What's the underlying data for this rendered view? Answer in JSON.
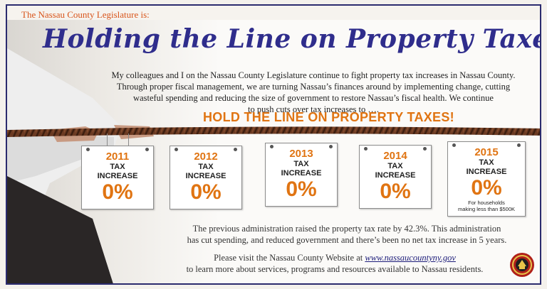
{
  "header": {
    "org_line": "The Nassau County Legislature is:",
    "headline": "Holding the Line on Property Taxes!"
  },
  "intro": {
    "line1": "My colleagues and I on the Nassau County Legislature continue to fight property tax increases in Nassau County.",
    "line2": "Through proper fiscal management, we are turning Nassau’s finances around by implementing change, cutting",
    "line3": "wasteful spending and reducing the size of government to restore Nassau’s fiscal health.  We continue",
    "line4": "to push cuts over tax increases to …."
  },
  "cta": "HOLD THE LINE ON PROPERTY TAXES!",
  "signs": [
    {
      "year": "2011",
      "line1": "TAX",
      "line2": "INCREASE",
      "percent": "0%",
      "note1": "",
      "note2": ""
    },
    {
      "year": "2012",
      "line1": "TAX",
      "line2": "INCREASE",
      "percent": "0%",
      "note1": "",
      "note2": ""
    },
    {
      "year": "2013",
      "line1": "TAX",
      "line2": "INCREASE",
      "percent": "0%",
      "note1": "",
      "note2": ""
    },
    {
      "year": "2014",
      "line1": "TAX",
      "line2": "INCREASE",
      "percent": "0%",
      "note1": "",
      "note2": ""
    },
    {
      "year": "2015",
      "line1": "TAX",
      "line2": "INCREASE",
      "percent": "0%",
      "note1": "For households",
      "note2": "making less than $500K"
    }
  ],
  "summary": {
    "line1": "The previous administration raised the property tax rate by 42.3%.  This administration",
    "line2": "has cut spending, and reduced government and there’s been no net tax increase in 5 years."
  },
  "visit": {
    "prefix": "Please visit the Nassau County Website at ",
    "url": "www.nassaucountyny.gov",
    "line2": "to learn more about services, programs and resources available to Nassau residents."
  },
  "colors": {
    "accent_orange": "#e07412",
    "headline_blue": "#2f2d8c",
    "org_orange": "#d8541a"
  },
  "icons": {
    "seal": "county-seal-icon",
    "rope": "rope-graphic"
  }
}
